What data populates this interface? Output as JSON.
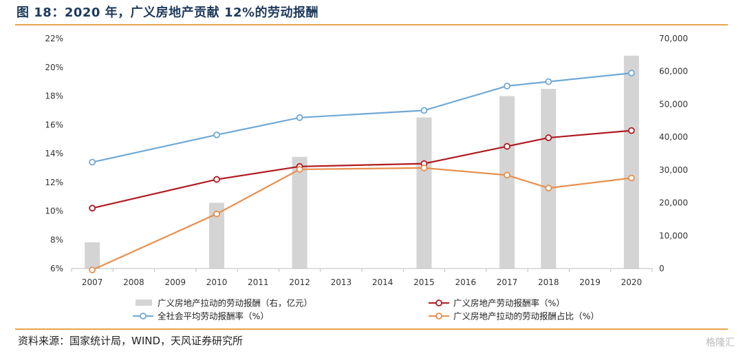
{
  "header": {
    "title": "图 18：2020 年，广义房地产贡献 12%的劳动报酬"
  },
  "footer": {
    "source": "资料来源：国家统计局，WIND，天风证券研究所",
    "watermark": "格隆汇"
  },
  "colors": {
    "bar": "#d4d4d4",
    "red": "#b0191f",
    "blue": "#6fa8d6",
    "orange": "#e88e4d",
    "accent_rule": "#e8a24a"
  },
  "chart_data": {
    "type": "bar+line",
    "categories": [
      "2007",
      "2008",
      "2009",
      "2010",
      "2011",
      "2012",
      "2013",
      "2014",
      "2015",
      "2016",
      "2017",
      "2018",
      "2019",
      "2020"
    ],
    "y_left": {
      "ylim": [
        6,
        22
      ],
      "ticks": [
        "6%",
        "8%",
        "10%",
        "12%",
        "14%",
        "16%",
        "18%",
        "20%",
        "22%"
      ]
    },
    "y_right": {
      "ylim": [
        0,
        70000
      ],
      "ticks": [
        "0",
        "10,000",
        "20,000",
        "30,000",
        "40,000",
        "50,000",
        "60,000",
        "70,000"
      ]
    },
    "series": [
      {
        "key": "bar",
        "name": "广义房地产拉动的劳动报酬（右，亿元）",
        "type": "bar",
        "axis": "right",
        "values": [
          8000,
          null,
          null,
          20000,
          null,
          34000,
          null,
          null,
          46000,
          null,
          52500,
          54700,
          null,
          64800
        ]
      },
      {
        "key": "red",
        "name": "广义房地产劳动报酬率（%）",
        "type": "line",
        "axis": "left",
        "values": [
          10.2,
          null,
          null,
          12.2,
          null,
          13.1,
          null,
          null,
          13.3,
          null,
          14.5,
          15.1,
          null,
          15.6
        ]
      },
      {
        "key": "blue",
        "name": "全社会平均劳动报酬率（%）",
        "type": "line",
        "axis": "left",
        "values": [
          13.4,
          null,
          null,
          15.3,
          null,
          16.5,
          null,
          null,
          17.0,
          null,
          18.7,
          19.0,
          null,
          19.6
        ]
      },
      {
        "key": "orange",
        "name": "广义房地产拉动的劳动报酬占比（%）",
        "type": "line",
        "axis": "left",
        "values": [
          5.9,
          null,
          null,
          9.8,
          null,
          12.9,
          null,
          null,
          13.0,
          null,
          12.5,
          11.6,
          null,
          12.3
        ]
      }
    ]
  }
}
